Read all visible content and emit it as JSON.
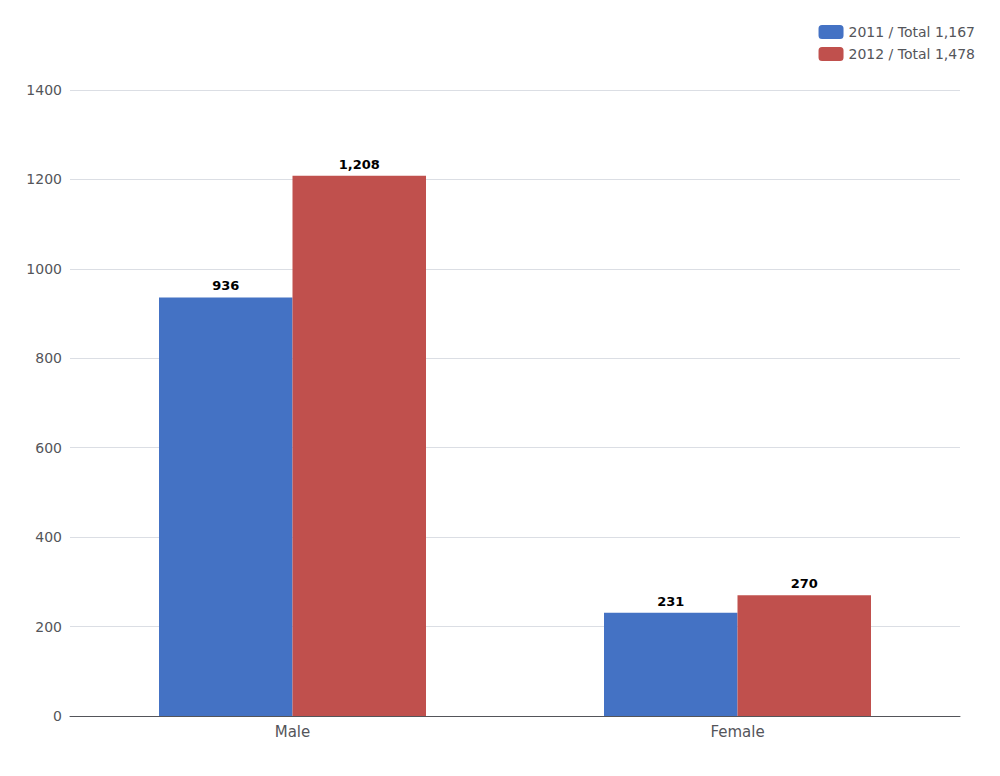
{
  "chart_data": {
    "type": "bar",
    "categories": [
      "Male",
      "Female"
    ],
    "series": [
      {
        "name": "2011 / Total 1,167",
        "color": "#4472C4",
        "values": [
          936,
          231
        ],
        "value_labels": [
          "936",
          "231"
        ]
      },
      {
        "name": "2012 / Total 1,478",
        "color": "#C0504D",
        "values": [
          1208,
          270
        ],
        "value_labels": [
          "1,208",
          "270"
        ]
      }
    ],
    "ylim": [
      0,
      1400
    ],
    "yticks": [
      0,
      200,
      400,
      600,
      800,
      1000,
      1200,
      1400
    ],
    "grid": true,
    "legend": "upper right",
    "data_labels": true
  }
}
